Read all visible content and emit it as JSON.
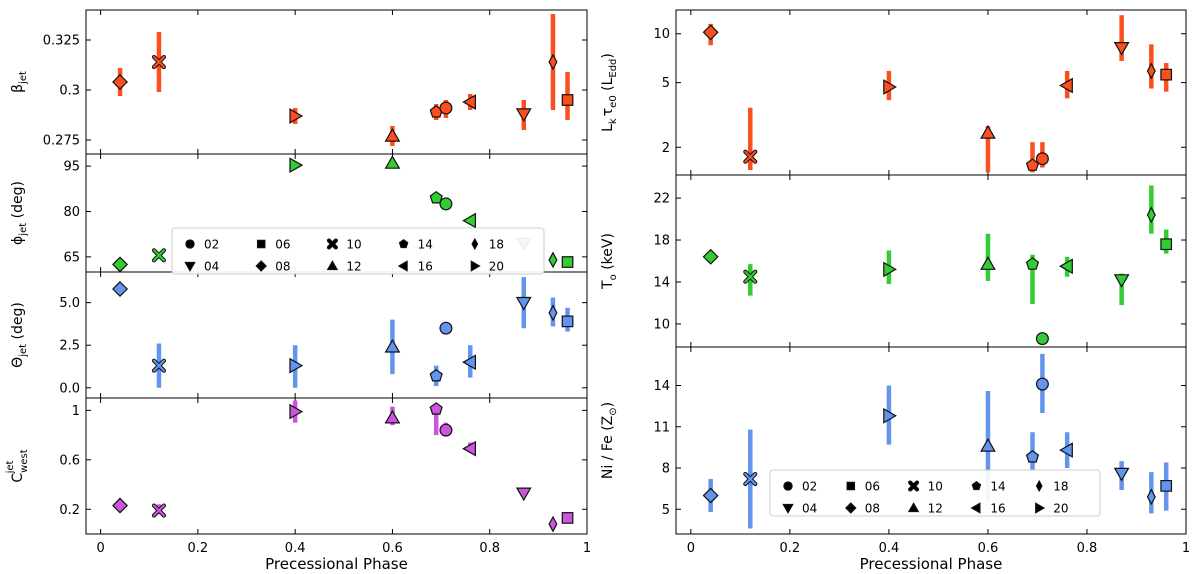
{
  "chart_data": {
    "type": "scatter",
    "x_axis": {
      "label": "Precessional Phase",
      "lim": [
        -0.03,
        1.0
      ],
      "ticks": [
        0,
        0.2,
        0.4,
        0.6,
        0.8,
        1
      ],
      "tick_labels": [
        "0",
        "0.2",
        "0.4",
        "0.6",
        "0.8",
        "1"
      ]
    },
    "legend": {
      "labels": [
        "02",
        "06",
        "10",
        "14",
        "18",
        "04",
        "08",
        "12",
        "16",
        "20"
      ],
      "markers": [
        "circle",
        "square",
        "x",
        "pentagon",
        "thin_diamond",
        "triangle_down",
        "diamond",
        "triangle_up",
        "triangle_left",
        "triangle_right"
      ]
    },
    "panels": [
      {
        "id": "beta_jet",
        "column": "left",
        "color": "#fc4f1f",
        "ylabel": "β_jet",
        "ylabel_main": "β",
        "ylabel_sub": "jet",
        "ylim": [
          0.268,
          0.34
        ],
        "yticks": [
          0.275,
          0.3,
          0.325
        ],
        "ytick_labels": [
          "0.275",
          "0.3",
          "0.325"
        ],
        "points": [
          {
            "obs": "08",
            "x": 0.04,
            "y": 0.304,
            "err": [
              0.297,
              0.311
            ]
          },
          {
            "obs": "10",
            "x": 0.12,
            "y": 0.314,
            "err": [
              0.299,
              0.329
            ]
          },
          {
            "obs": "20",
            "x": 0.4,
            "y": 0.287,
            "err": [
              0.283,
              0.291
            ]
          },
          {
            "obs": "12",
            "x": 0.6,
            "y": 0.277,
            "err": [
              0.272,
              0.282
            ]
          },
          {
            "obs": "14",
            "x": 0.69,
            "y": 0.289,
            "err": [
              0.285,
              0.293
            ]
          },
          {
            "obs": "02",
            "x": 0.71,
            "y": 0.291,
            "err": [
              0.286,
              0.295
            ]
          },
          {
            "obs": "16",
            "x": 0.76,
            "y": 0.294,
            "err": [
              0.29,
              0.298
            ]
          },
          {
            "obs": "04",
            "x": 0.87,
            "y": 0.288,
            "err": [
              0.28,
              0.295
            ]
          },
          {
            "obs": "18",
            "x": 0.93,
            "y": 0.314,
            "err": [
              0.29,
              0.338
            ]
          },
          {
            "obs": "06",
            "x": 0.96,
            "y": 0.295,
            "err": [
              0.285,
              0.309
            ]
          }
        ]
      },
      {
        "id": "phi_jet",
        "column": "left",
        "color": "#33cc33",
        "ylabel": "φ_jet (deg)",
        "ylabel_main": "ϕ",
        "ylabel_sub": "jet",
        "ylabel_tail": " (deg)",
        "ylim": [
          60,
          99
        ],
        "yticks": [
          65,
          80,
          95
        ],
        "ytick_labels": [
          "65",
          "80",
          "95"
        ],
        "points": [
          {
            "obs": "08",
            "x": 0.04,
            "y": 62.5
          },
          {
            "obs": "10",
            "x": 0.12,
            "y": 65.5
          },
          {
            "obs": "20",
            "x": 0.4,
            "y": 95.3
          },
          {
            "obs": "12",
            "x": 0.6,
            "y": 96.0
          },
          {
            "obs": "14",
            "x": 0.69,
            "y": 84.5
          },
          {
            "obs": "02",
            "x": 0.71,
            "y": 82.5
          },
          {
            "obs": "16",
            "x": 0.76,
            "y": 77.0
          },
          {
            "obs": "04",
            "x": 0.87,
            "y": 69.5
          },
          {
            "obs": "18",
            "x": 0.93,
            "y": 64.0
          },
          {
            "obs": "06",
            "x": 0.96,
            "y": 63.3
          }
        ]
      },
      {
        "id": "theta_jet",
        "column": "left",
        "color": "#6495ed",
        "ylabel": "Θ_jet (deg)",
        "ylabel_main": "Θ",
        "ylabel_sub": "jet",
        "ylabel_tail": " (deg)",
        "ylim": [
          -0.6,
          6.8
        ],
        "yticks": [
          0,
          2.5,
          5
        ],
        "ytick_labels": [
          "0.0",
          "2.5",
          "5.0"
        ],
        "points": [
          {
            "obs": "08",
            "x": 0.04,
            "y": 5.8
          },
          {
            "obs": "10",
            "x": 0.12,
            "y": 1.3,
            "err": [
              0.0,
              2.6
            ]
          },
          {
            "obs": "20",
            "x": 0.4,
            "y": 1.3,
            "err": [
              0.0,
              2.5
            ]
          },
          {
            "obs": "12",
            "x": 0.6,
            "y": 2.4,
            "err": [
              0.8,
              4.0
            ]
          },
          {
            "obs": "14",
            "x": 0.69,
            "y": 0.7,
            "err": [
              0.1,
              1.3
            ]
          },
          {
            "obs": "02",
            "x": 0.71,
            "y": 3.5
          },
          {
            "obs": "16",
            "x": 0.76,
            "y": 1.5,
            "err": [
              0.6,
              2.5
            ]
          },
          {
            "obs": "04",
            "x": 0.87,
            "y": 5.0,
            "err": [
              3.5,
              6.5
            ]
          },
          {
            "obs": "18",
            "x": 0.93,
            "y": 4.4,
            "err": [
              3.6,
              5.3
            ]
          },
          {
            "obs": "06",
            "x": 0.96,
            "y": 3.9,
            "err": [
              3.3,
              4.7
            ]
          }
        ]
      },
      {
        "id": "c_west",
        "column": "left",
        "color": "#cc55dd",
        "ylabel": "C^jet_west",
        "ylabel_main": "C",
        "ylabel_sup": "jet",
        "ylabel_sub": "west",
        "ylim": [
          0.0,
          1.1
        ],
        "yticks": [
          0.2,
          0.6,
          1.0
        ],
        "ytick_labels": [
          "0.2",
          "0.6",
          "1"
        ],
        "points": [
          {
            "obs": "08",
            "x": 0.04,
            "y": 0.23
          },
          {
            "obs": "10",
            "x": 0.12,
            "y": 0.19,
            "err": [
              0.16,
              0.24
            ]
          },
          {
            "obs": "20",
            "x": 0.4,
            "y": 0.99,
            "err": [
              0.9,
              1.08
            ]
          },
          {
            "obs": "12",
            "x": 0.6,
            "y": 0.94,
            "err": [
              0.88,
              1.03
            ]
          },
          {
            "obs": "14",
            "x": 0.69,
            "y": 1.01,
            "err": [
              0.8,
              1.05
            ]
          },
          {
            "obs": "02",
            "x": 0.71,
            "y": 0.84,
            "err": [
              0.8,
              0.9
            ]
          },
          {
            "obs": "16",
            "x": 0.76,
            "y": 0.69,
            "err": [
              0.66,
              0.74
            ]
          },
          {
            "obs": "04",
            "x": 0.87,
            "y": 0.33
          },
          {
            "obs": "18",
            "x": 0.93,
            "y": 0.08
          },
          {
            "obs": "06",
            "x": 0.96,
            "y": 0.13
          }
        ]
      },
      {
        "id": "lk_tau",
        "column": "right",
        "color": "#fc4f1f",
        "yscale": "log",
        "ylabel": "L_k τ_e0 (L_Edd)",
        "ylim": [
          1.35,
          14.0
        ],
        "yticks": [
          2,
          5,
          10
        ],
        "ytick_labels": [
          "2",
          "5",
          "10"
        ],
        "points": [
          {
            "obs": "08",
            "x": 0.04,
            "y": 10.2,
            "err": [
              8.5,
              11.5
            ]
          },
          {
            "obs": "10",
            "x": 0.12,
            "y": 1.75,
            "err": [
              1.45,
              3.5
            ]
          },
          {
            "obs": "20",
            "x": 0.4,
            "y": 4.7,
            "err": [
              3.9,
              5.9
            ]
          },
          {
            "obs": "12",
            "x": 0.6,
            "y": 2.45,
            "err": [
              1.4,
              2.7
            ]
          },
          {
            "obs": "14",
            "x": 0.69,
            "y": 1.55,
            "err": [
              1.4,
              2.15
            ]
          },
          {
            "obs": "02",
            "x": 0.71,
            "y": 1.7,
            "err": [
              1.5,
              2.15
            ]
          },
          {
            "obs": "16",
            "x": 0.76,
            "y": 4.8,
            "err": [
              4.0,
              5.9
            ]
          },
          {
            "obs": "04",
            "x": 0.87,
            "y": 8.2,
            "err": [
              6.8,
              13.0
            ]
          },
          {
            "obs": "18",
            "x": 0.93,
            "y": 5.9,
            "err": [
              4.6,
              8.6
            ]
          },
          {
            "obs": "06",
            "x": 0.96,
            "y": 5.6,
            "err": [
              4.4,
              6.6
            ]
          }
        ]
      },
      {
        "id": "t0",
        "column": "right",
        "color": "#33cc33",
        "ylabel": "T_0 (keV)",
        "ylim": [
          7.8,
          24.2
        ],
        "yticks": [
          10,
          14,
          18,
          22
        ],
        "ytick_labels": [
          "10",
          "14",
          "18",
          "22"
        ],
        "points": [
          {
            "obs": "08",
            "x": 0.04,
            "y": 16.4
          },
          {
            "obs": "10",
            "x": 0.12,
            "y": 14.5,
            "err": [
              12.7,
              15.7
            ]
          },
          {
            "obs": "20",
            "x": 0.4,
            "y": 15.2,
            "err": [
              13.8,
              17.0
            ]
          },
          {
            "obs": "12",
            "x": 0.6,
            "y": 15.7,
            "err": [
              14.1,
              18.6
            ]
          },
          {
            "obs": "14",
            "x": 0.69,
            "y": 15.7,
            "err": [
              11.9,
              16.6
            ]
          },
          {
            "obs": "02",
            "x": 0.71,
            "y": 8.6,
            "err": [
              8.1,
              9.1
            ]
          },
          {
            "obs": "16",
            "x": 0.76,
            "y": 15.5,
            "err": [
              14.5,
              16.4
            ]
          },
          {
            "obs": "04",
            "x": 0.87,
            "y": 14.2,
            "err": [
              11.8,
              14.8
            ]
          },
          {
            "obs": "18",
            "x": 0.93,
            "y": 20.4,
            "err": [
              18.6,
              23.2
            ]
          },
          {
            "obs": "06",
            "x": 0.96,
            "y": 17.6,
            "err": [
              16.7,
              19.0
            ]
          }
        ]
      },
      {
        "id": "ni_fe",
        "column": "right",
        "color": "#6495ed",
        "ylabel": "Ni / Fe (Z⊙)",
        "ylim": [
          3.2,
          16.8
        ],
        "yticks": [
          5,
          8,
          11,
          14
        ],
        "ytick_labels": [
          "5",
          "8",
          "11",
          "14"
        ],
        "points": [
          {
            "obs": "08",
            "x": 0.04,
            "y": 6.0,
            "err": [
              4.8,
              7.2
            ]
          },
          {
            "obs": "10",
            "x": 0.12,
            "y": 7.2,
            "err": [
              3.6,
              10.8
            ]
          },
          {
            "obs": "20",
            "x": 0.4,
            "y": 11.8,
            "err": [
              9.7,
              14.0
            ]
          },
          {
            "obs": "12",
            "x": 0.6,
            "y": 9.6,
            "err": [
              5.6,
              13.6
            ]
          },
          {
            "obs": "14",
            "x": 0.69,
            "y": 8.8,
            "err": [
              7.8,
              10.6
            ]
          },
          {
            "obs": "02",
            "x": 0.71,
            "y": 14.1,
            "err": [
              12.0,
              16.3
            ]
          },
          {
            "obs": "16",
            "x": 0.76,
            "y": 9.3,
            "err": [
              8.0,
              10.6
            ]
          },
          {
            "obs": "04",
            "x": 0.87,
            "y": 7.6,
            "err": [
              6.4,
              8.5
            ]
          },
          {
            "obs": "18",
            "x": 0.93,
            "y": 5.9,
            "err": [
              4.7,
              7.7
            ]
          },
          {
            "obs": "06",
            "x": 0.96,
            "y": 6.7,
            "err": [
              4.9,
              8.4
            ]
          }
        ]
      }
    ]
  }
}
